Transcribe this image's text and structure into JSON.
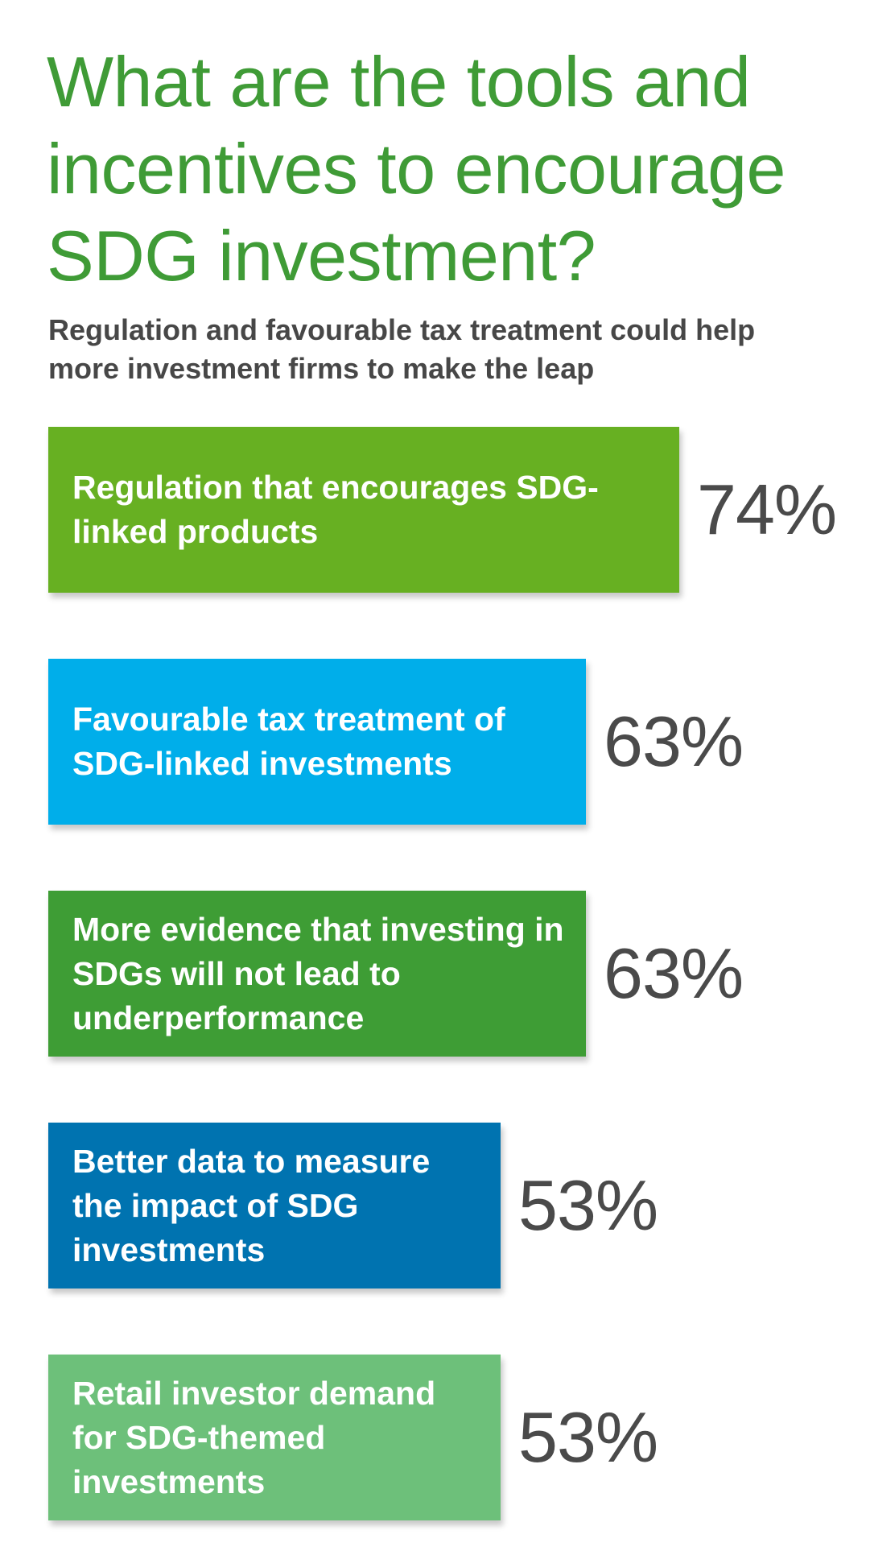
{
  "chart_data": {
    "type": "bar",
    "orientation": "horizontal",
    "title": "What are the tools and incentives to encourage SDG investment?",
    "subtitle": "Regulation and favourable tax treatment could help more investment firms to make the leap",
    "categories": [
      "Regulation that encourages SDG-linked products",
      "Favourable tax treatment of SDG-linked investments",
      "More evidence that investing in SDGs will not lead to underperformance",
      "Better data to measure the impact of SDG investments",
      "Retail investor demand for SDG-themed investments"
    ],
    "values": [
      74,
      63,
      63,
      53,
      53
    ],
    "value_labels": [
      "74%",
      "63%",
      "63%",
      "53%",
      "53%"
    ],
    "colors": [
      "#67b022",
      "#00aeea",
      "#3e9d35",
      "#0073b0",
      "#6dc07a"
    ],
    "unit": "%",
    "legend": "none",
    "grid": false
  }
}
